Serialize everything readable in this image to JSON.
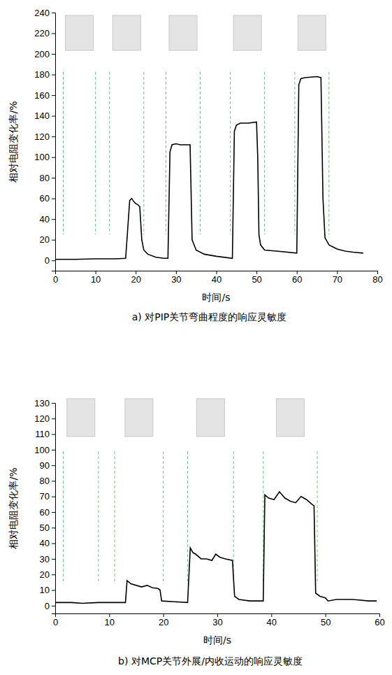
{
  "chart_data": [
    {
      "type": "line",
      "title": "a) 对PIP关节弯曲程度的响应灵敏度",
      "xlabel": "时间/s",
      "ylabel": "相对电阻变化率/%",
      "color": "#000000",
      "xlim": [
        0,
        80
      ],
      "xticks": [
        0,
        10,
        20,
        30,
        40,
        50,
        60,
        70,
        80
      ],
      "ylim": [
        -10,
        240
      ],
      "yticks": [
        0,
        20,
        40,
        60,
        80,
        100,
        120,
        140,
        160,
        180,
        200,
        220,
        240
      ],
      "vlines": [
        2,
        10,
        13.5,
        22,
        27.5,
        36,
        43.5,
        52,
        59.5,
        68
      ],
      "x": [
        0,
        5,
        10,
        15,
        17.5,
        18,
        18.5,
        19,
        19.5,
        20,
        20.5,
        21,
        21.5,
        22,
        23,
        25,
        27,
        28,
        28.5,
        29,
        30,
        31,
        33,
        33.5,
        34,
        35,
        37,
        40,
        44,
        44.5,
        45,
        46,
        48,
        50,
        50.3,
        50.6,
        51,
        52,
        55,
        60,
        60.5,
        61,
        62,
        65,
        66,
        66.5,
        67,
        68,
        70,
        72,
        74,
        76.5
      ],
      "values": [
        1,
        1,
        1.5,
        1.5,
        2,
        30,
        58,
        60,
        57,
        55,
        54,
        52,
        20,
        10,
        6,
        3,
        2,
        2,
        105,
        112,
        113,
        112,
        112,
        112,
        20,
        10,
        6,
        4,
        2,
        125,
        131,
        133,
        133,
        134,
        100,
        25,
        15,
        10,
        9,
        7,
        170,
        176,
        177,
        178,
        177,
        60,
        22,
        15,
        11,
        9,
        8,
        7
      ]
    },
    {
      "type": "line",
      "title": "b) 对MCP关节外展/内收运动的响应灵敏度",
      "xlabel": "时间/s",
      "ylabel": "相对电阻变化率/%",
      "color": "#000000",
      "xlim": [
        0,
        60
      ],
      "xticks": [
        0,
        10,
        20,
        30,
        40,
        50,
        60
      ],
      "ylim": [
        -5,
        130
      ],
      "yticks": [
        0,
        10,
        20,
        30,
        40,
        50,
        60,
        70,
        80,
        90,
        100,
        110,
        120,
        130
      ],
      "vlines": [
        1.5,
        8,
        11,
        20,
        24.5,
        33,
        38.5,
        48.5
      ],
      "x": [
        0,
        3,
        5,
        8,
        11,
        13,
        13.3,
        14,
        15,
        16,
        17,
        18,
        19,
        19.4,
        19.7,
        22,
        24.5,
        25,
        25.5,
        26,
        27,
        28,
        29,
        29.7,
        30.5,
        31.5,
        32.8,
        33.2,
        34,
        36,
        38.5,
        38.8,
        39.5,
        40.5,
        41.5,
        42.5,
        43.5,
        44.5,
        45.5,
        46.5,
        47.5,
        47.9,
        48.2,
        49,
        50,
        50.5,
        52,
        55,
        58,
        59.5
      ],
      "values": [
        2,
        2,
        1.5,
        2,
        2,
        2,
        16,
        14,
        13,
        12,
        13,
        11.5,
        11,
        10,
        3,
        2.5,
        2,
        37,
        34,
        33,
        30,
        30,
        29,
        33,
        31,
        30,
        29,
        6,
        4,
        3,
        3,
        71,
        69,
        68,
        73,
        69,
        67,
        66,
        70,
        68,
        65,
        64,
        8,
        6,
        5,
        3,
        4,
        4,
        3,
        3
      ]
    }
  ]
}
